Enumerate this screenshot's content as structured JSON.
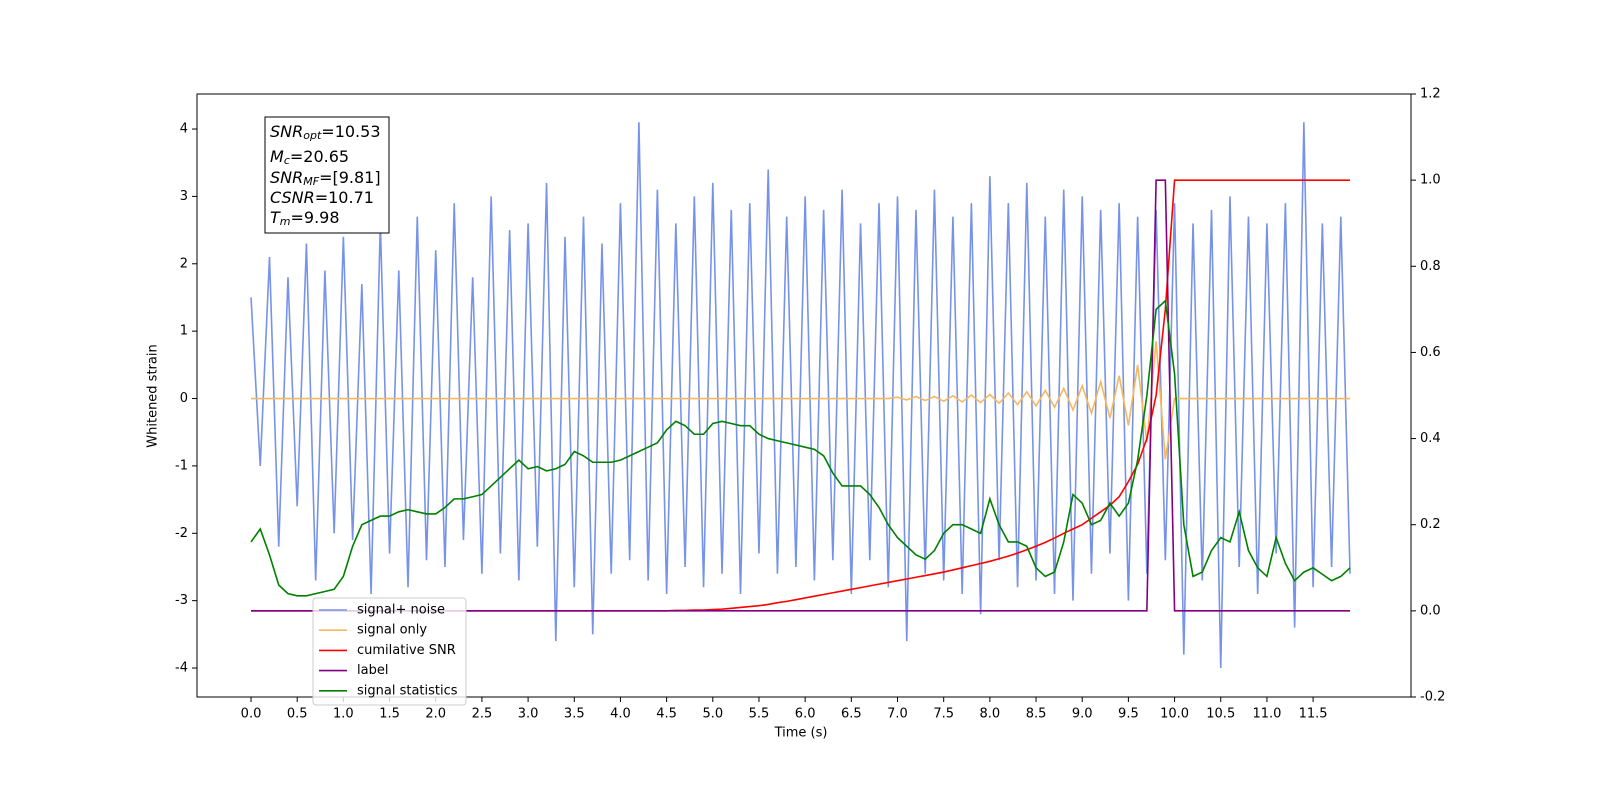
{
  "chart_data": {
    "type": "line",
    "x_label": "Time (s)",
    "y_label": "Whitened strain",
    "annotations": [
      {
        "main": "SNR",
        "sub": "opt",
        "text": "=10.53"
      },
      {
        "main": "M",
        "sub": "c",
        "text": "=20.65"
      },
      {
        "main": "SNR",
        "sub": "MF",
        "text": "=[9.81]"
      },
      {
        "main": "CSNR",
        "sub": "",
        "text": "=10.71"
      },
      {
        "main": "T",
        "sub": "m",
        "text": "=9.98"
      }
    ],
    "xlim": [
      -0.585,
      12.56
    ],
    "ylim": [
      -4.43,
      4.52
    ],
    "y2lim": [
      -0.2,
      1.2
    ],
    "xticks": [
      {
        "value": 0,
        "label": "0.0"
      },
      0.5,
      {
        "value": 1,
        "label": "1.0"
      },
      1.5,
      {
        "value": 2,
        "label": "2.0"
      },
      2.5,
      {
        "value": 3,
        "label": "3.0"
      },
      3.5,
      {
        "value": 4,
        "label": "4.0"
      },
      4.5,
      {
        "value": 5,
        "label": "5.0"
      },
      5.5,
      {
        "value": 6,
        "label": "6.0"
      },
      6.5,
      {
        "value": 7,
        "label": "7.0"
      },
      7.5,
      {
        "value": 8,
        "label": "8.0"
      },
      8.5,
      {
        "value": 9,
        "label": "9.0"
      },
      9.5,
      {
        "value": 10,
        "label": "10.0"
      },
      10.5,
      {
        "value": 11,
        "label": "11.0"
      },
      11.5
    ],
    "yticks": [
      -4,
      -3,
      -2,
      -1,
      0,
      1,
      2,
      3,
      4
    ],
    "y2ticks": [
      -0.2,
      {
        "value": 0,
        "label": "0.0"
      },
      0.2,
      0.4,
      0.6,
      0.8,
      {
        "value": 1,
        "label": "1.0"
      },
      1.2
    ],
    "legend": "lower left",
    "x": [
      0.0,
      0.1,
      0.2,
      0.3,
      0.4,
      0.5,
      0.6,
      0.7,
      0.8,
      0.9,
      1.0,
      1.1,
      1.2,
      1.3,
      1.4,
      1.5,
      1.6,
      1.7,
      1.8,
      1.9,
      2.0,
      2.1,
      2.2,
      2.3,
      2.4,
      2.5,
      2.6,
      2.7,
      2.8,
      2.9,
      3.0,
      3.1,
      3.2,
      3.3,
      3.4,
      3.5,
      3.6,
      3.7,
      3.8,
      3.9,
      4.0,
      4.1,
      4.2,
      4.3,
      4.4,
      4.5,
      4.6,
      4.7,
      4.8,
      4.9,
      5.0,
      5.1,
      5.2,
      5.3,
      5.4,
      5.5,
      5.6,
      5.7,
      5.8,
      5.9,
      6.0,
      6.1,
      6.2,
      6.3,
      6.4,
      6.5,
      6.6,
      6.7,
      6.8,
      6.9,
      7.0,
      7.1,
      7.2,
      7.3,
      7.4,
      7.5,
      7.6,
      7.7,
      7.8,
      7.9,
      8.0,
      8.1,
      8.2,
      8.3,
      8.4,
      8.5,
      8.6,
      8.7,
      8.8,
      8.9,
      9.0,
      9.1,
      9.2,
      9.3,
      9.4,
      9.5,
      9.6,
      9.7,
      9.8,
      9.9,
      10.0,
      10.1,
      10.2,
      10.3,
      10.4,
      10.5,
      10.6,
      10.7,
      10.8,
      10.9,
      11.0,
      11.1,
      11.2,
      11.3,
      11.4,
      11.5,
      11.6,
      11.7,
      11.8,
      11.9
    ],
    "series": [
      {
        "name": "signal+ noise",
        "color": "#7793e8",
        "axis": "y",
        "values": [
          1.5,
          -1.0,
          2.1,
          -2.2,
          1.8,
          -1.6,
          2.3,
          -2.7,
          1.9,
          -2.0,
          2.4,
          -2.1,
          1.7,
          -2.9,
          2.6,
          -2.3,
          1.9,
          -2.8,
          2.7,
          -2.4,
          2.2,
          -2.5,
          2.9,
          -2.1,
          1.8,
          -2.6,
          3.0,
          -2.3,
          2.5,
          -2.7,
          2.6,
          -2.2,
          3.2,
          -3.6,
          2.4,
          -2.8,
          2.7,
          -3.5,
          2.3,
          -2.6,
          2.9,
          -2.4,
          4.1,
          -2.7,
          3.1,
          -2.9,
          2.6,
          -2.5,
          3.0,
          -2.8,
          3.2,
          -2.6,
          2.8,
          -2.9,
          2.9,
          -2.3,
          3.4,
          -2.6,
          2.7,
          -2.5,
          3.0,
          -2.7,
          2.8,
          -2.4,
          3.1,
          -2.9,
          2.6,
          -2.4,
          2.9,
          -2.8,
          3.0,
          -3.6,
          2.8,
          -2.6,
          3.1,
          -2.7,
          2.7,
          -2.9,
          2.9,
          -3.2,
          3.3,
          -2.4,
          2.9,
          -2.8,
          3.2,
          -2.7,
          2.7,
          -2.9,
          3.1,
          -3.0,
          3.0,
          -2.6,
          2.8,
          -2.3,
          2.9,
          -3.0,
          2.7,
          -2.6,
          2.8,
          -2.4,
          2.9,
          -3.8,
          2.6,
          -2.7,
          2.8,
          -4.0,
          3.0,
          -2.5,
          2.7,
          -2.9,
          2.6,
          -2.3,
          2.9,
          -3.4,
          4.1,
          -2.8,
          2.6,
          -2.5,
          2.7,
          -2.6
        ]
      },
      {
        "name": "signal only",
        "color": "#f5b861",
        "axis": "y",
        "values": [
          0,
          0,
          0,
          0,
          0,
          0,
          0,
          0,
          0,
          0,
          0,
          0,
          0,
          0,
          0,
          0,
          0,
          0,
          0,
          0,
          0,
          0,
          0,
          0,
          0,
          0,
          0,
          0,
          0,
          0,
          0,
          0,
          0,
          0,
          0,
          0,
          0,
          0,
          0,
          0,
          0,
          0,
          0,
          0,
          0,
          0,
          0,
          0,
          0,
          0,
          0,
          0,
          0,
          0,
          0,
          0,
          0,
          0,
          0,
          0,
          0,
          0,
          0,
          0,
          0,
          0,
          0,
          0,
          0,
          0,
          0.02,
          -0.02,
          0.03,
          -0.03,
          0.03,
          -0.04,
          0.04,
          -0.05,
          0.05,
          -0.06,
          0.06,
          -0.07,
          0.08,
          -0.09,
          0.1,
          -0.11,
          0.12,
          -0.13,
          0.15,
          -0.17,
          0.19,
          -0.22,
          0.25,
          -0.29,
          0.34,
          -0.4,
          0.5,
          -0.65,
          0.85,
          -0.9,
          0,
          0,
          0,
          0,
          0,
          0,
          0,
          0,
          0,
          0,
          0,
          0,
          0,
          0,
          0,
          0,
          0,
          0,
          0,
          0
        ]
      },
      {
        "name": "cumilative SNR",
        "color": "#ff0000",
        "axis": "y2",
        "values": [
          0,
          0,
          0,
          0,
          0,
          0,
          0,
          0,
          0,
          0,
          0,
          0,
          0,
          0,
          0,
          0,
          0,
          0,
          0,
          0,
          0,
          0,
          0,
          0,
          0,
          0,
          0,
          0,
          0,
          0,
          0,
          0,
          0,
          0,
          0,
          0,
          0,
          0,
          0,
          0,
          0,
          0,
          0,
          0,
          0,
          0,
          0.001,
          0.001,
          0.002,
          0.002,
          0.003,
          0.004,
          0.006,
          0.008,
          0.01,
          0.012,
          0.015,
          0.019,
          0.022,
          0.026,
          0.03,
          0.034,
          0.038,
          0.042,
          0.046,
          0.05,
          0.054,
          0.058,
          0.062,
          0.066,
          0.07,
          0.074,
          0.078,
          0.082,
          0.086,
          0.09,
          0.095,
          0.1,
          0.105,
          0.11,
          0.115,
          0.121,
          0.127,
          0.134,
          0.142,
          0.15,
          0.159,
          0.169,
          0.18,
          0.19,
          0.2,
          0.215,
          0.23,
          0.245,
          0.265,
          0.3,
          0.34,
          0.4,
          0.5,
          0.7,
          1.0,
          1.0,
          1.0,
          1.0,
          1.0,
          1.0,
          1.0,
          1.0,
          1.0,
          1.0,
          1.0,
          1.0,
          1.0,
          1.0,
          1.0,
          1.0,
          1.0,
          1.0,
          1.0,
          1.0
        ]
      },
      {
        "name": "label",
        "color": "#800080",
        "axis": "y2",
        "values": [
          0,
          0,
          0,
          0,
          0,
          0,
          0,
          0,
          0,
          0,
          0,
          0,
          0,
          0,
          0,
          0,
          0,
          0,
          0,
          0,
          0,
          0,
          0,
          0,
          0,
          0,
          0,
          0,
          0,
          0,
          0,
          0,
          0,
          0,
          0,
          0,
          0,
          0,
          0,
          0,
          0,
          0,
          0,
          0,
          0,
          0,
          0,
          0,
          0,
          0,
          0,
          0,
          0,
          0,
          0,
          0,
          0,
          0,
          0,
          0,
          0,
          0,
          0,
          0,
          0,
          0,
          0,
          0,
          0,
          0,
          0,
          0,
          0,
          0,
          0,
          0,
          0,
          0,
          0,
          0,
          0,
          0,
          0,
          0,
          0,
          0,
          0,
          0,
          0,
          0,
          0,
          0,
          0,
          0,
          0,
          0,
          0,
          0,
          1,
          1,
          0,
          0,
          0,
          0,
          0,
          0,
          0,
          0,
          0,
          0,
          0,
          0,
          0,
          0,
          0,
          0,
          0,
          0,
          0,
          0
        ]
      },
      {
        "name": "signal statistics",
        "color": "#008000",
        "axis": "y2",
        "values": [
          0.16,
          0.19,
          0.13,
          0.06,
          0.04,
          0.035,
          0.035,
          0.04,
          0.045,
          0.05,
          0.08,
          0.15,
          0.2,
          0.21,
          0.22,
          0.22,
          0.23,
          0.235,
          0.23,
          0.225,
          0.225,
          0.24,
          0.26,
          0.26,
          0.265,
          0.27,
          0.29,
          0.31,
          0.33,
          0.35,
          0.33,
          0.335,
          0.325,
          0.33,
          0.34,
          0.37,
          0.36,
          0.345,
          0.345,
          0.345,
          0.35,
          0.36,
          0.37,
          0.38,
          0.39,
          0.42,
          0.44,
          0.43,
          0.41,
          0.41,
          0.435,
          0.44,
          0.435,
          0.43,
          0.43,
          0.41,
          0.4,
          0.395,
          0.39,
          0.385,
          0.38,
          0.375,
          0.36,
          0.32,
          0.29,
          0.29,
          0.29,
          0.27,
          0.24,
          0.2,
          0.17,
          0.15,
          0.13,
          0.12,
          0.14,
          0.18,
          0.2,
          0.2,
          0.19,
          0.18,
          0.26,
          0.2,
          0.16,
          0.16,
          0.15,
          0.1,
          0.08,
          0.09,
          0.16,
          0.27,
          0.25,
          0.2,
          0.21,
          0.25,
          0.22,
          0.25,
          0.35,
          0.5,
          0.7,
          0.72,
          0.55,
          0.2,
          0.08,
          0.09,
          0.14,
          0.17,
          0.16,
          0.23,
          0.14,
          0.1,
          0.08,
          0.17,
          0.11,
          0.07,
          0.09,
          0.1,
          0.085,
          0.07,
          0.08,
          0.1
        ]
      }
    ]
  }
}
